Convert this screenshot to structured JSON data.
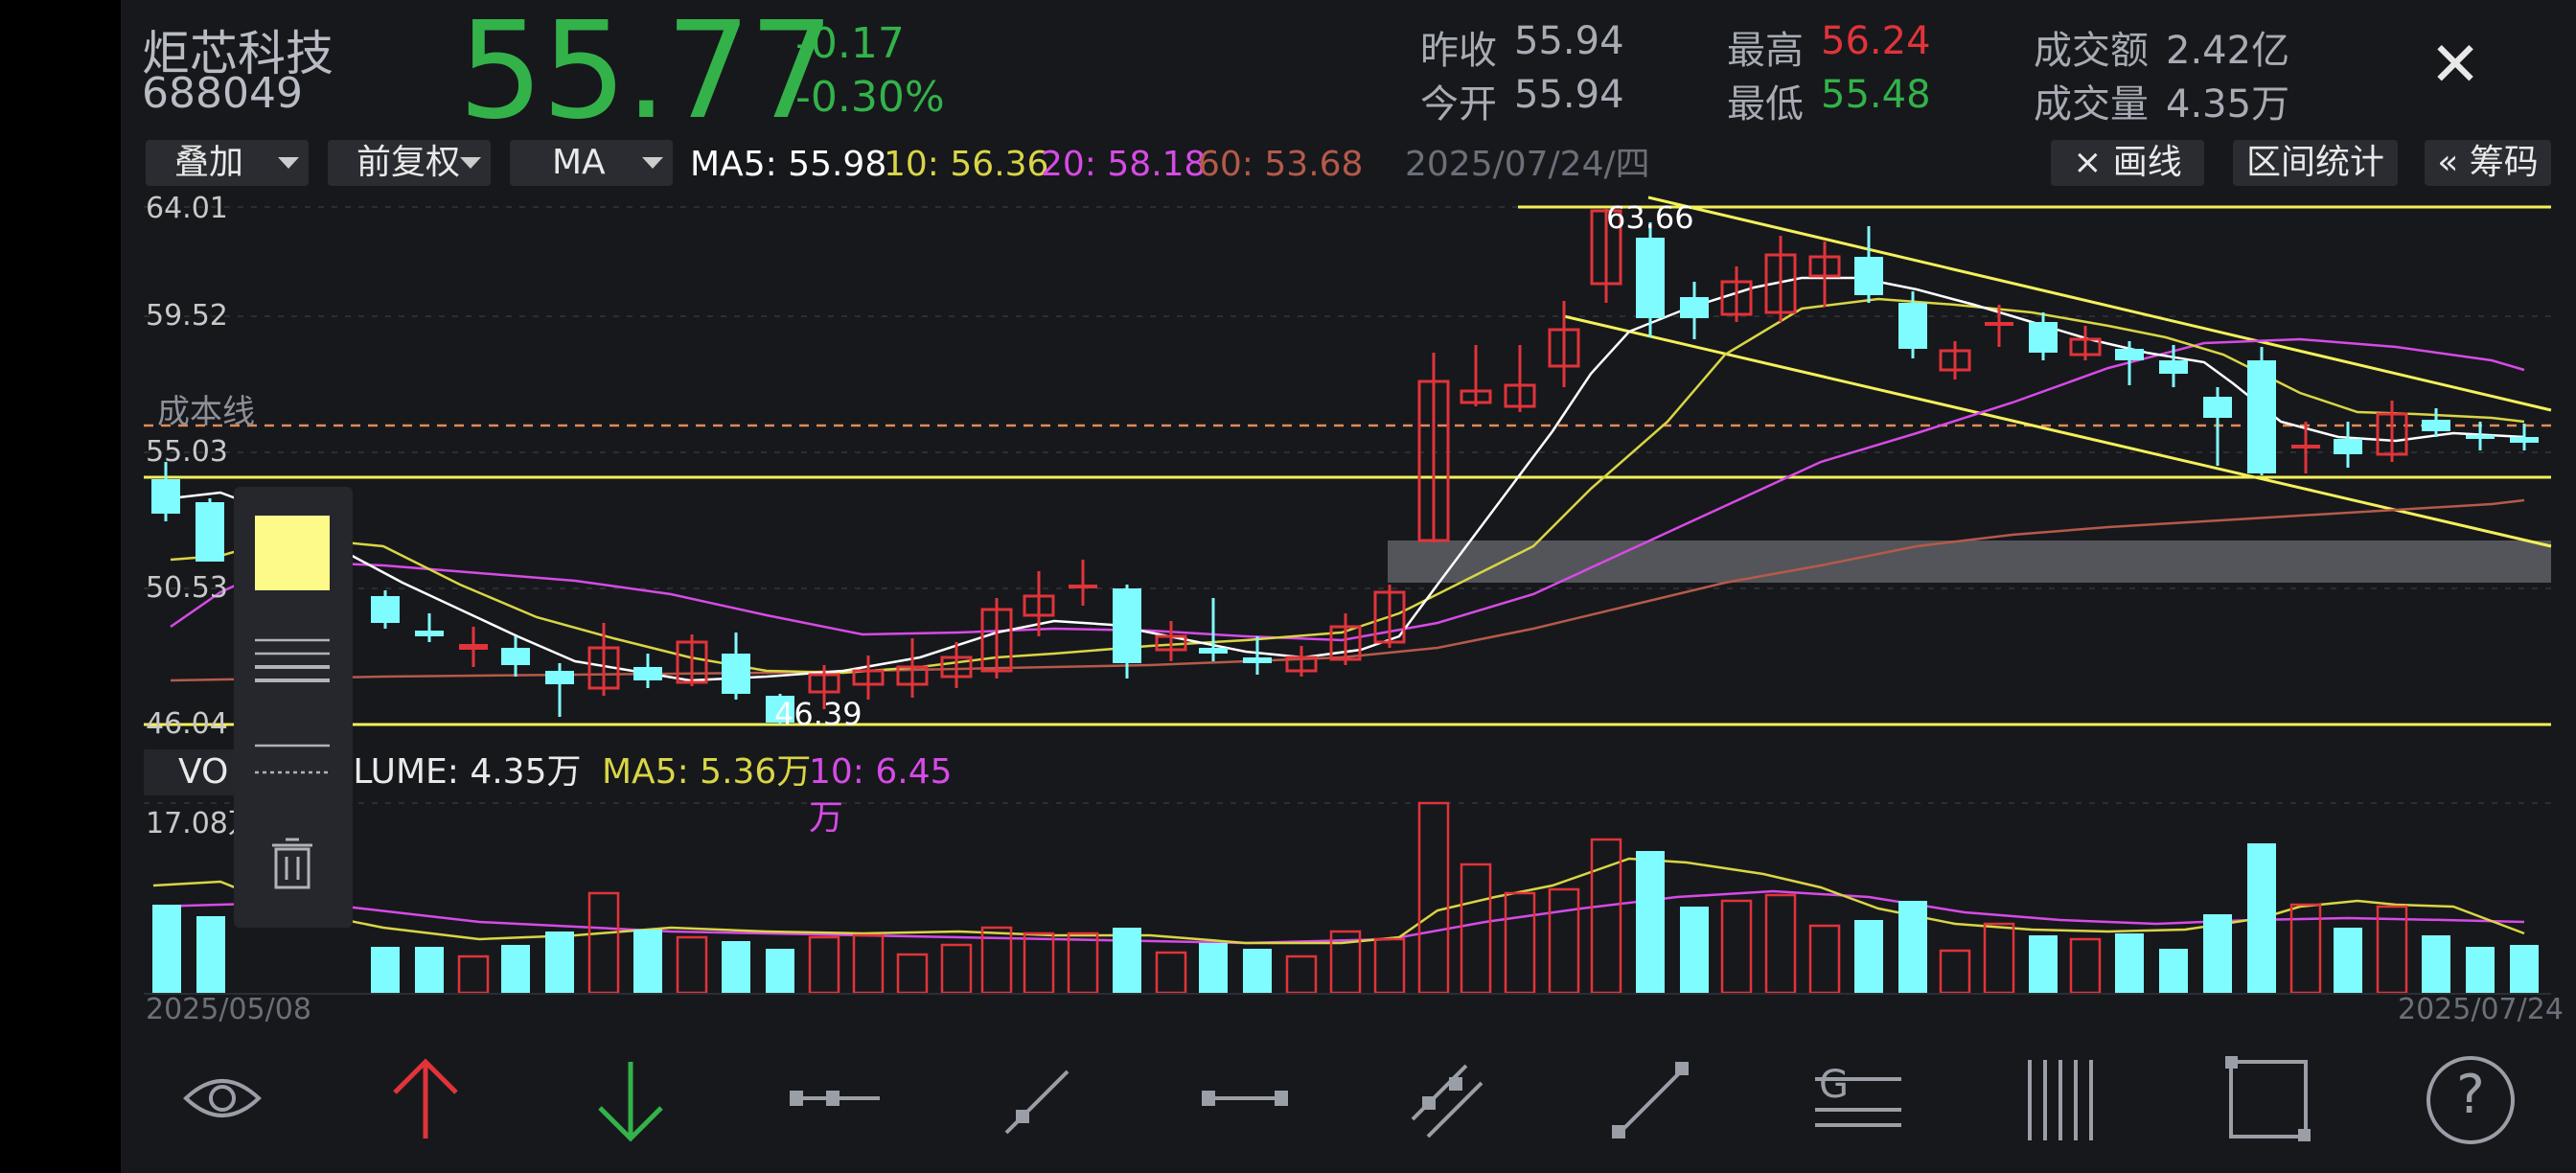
{
  "stock": {
    "name": "炬芯科技",
    "code": "688049",
    "price": "55.77",
    "change": "-0.17",
    "change_pct": "-0.30%"
  },
  "stats": {
    "prev_close_label": "昨收",
    "prev_close": "55.94",
    "open_label": "今开",
    "open": "55.94",
    "high_label": "最高",
    "high": "56.24",
    "low_label": "最低",
    "low": "55.48",
    "amount_label": "成交额",
    "amount": "2.42亿",
    "volume_label": "成交量",
    "volume": "4.35万"
  },
  "toolbar": {
    "overlay_label": "叠加",
    "adjust_label": "前复权",
    "indicator_label": "MA",
    "ma5": "MA5: 55.98",
    "ma10": "10: 56.36",
    "ma20": "20: 58.18",
    "ma60": "60: 53.68",
    "current_date": "2025/07/24/四",
    "draw_line_label": "× 画线",
    "range_stats_label": "区间统计",
    "chips_label": "« 筹码"
  },
  "price_axis": {
    "top": "64.01",
    "t2": "59.52",
    "t3": "55.03",
    "t4": "50.53",
    "bottom": "46.04"
  },
  "annotations": {
    "peak": "63.66",
    "trough": "46.39",
    "cost_line_label": "成本线"
  },
  "volume_panel": {
    "label_prefix": "VO",
    "label_suffix": "OLUME: 4.35万",
    "ma5": "MA5: 5.36万",
    "ma10": "10: 6.45万",
    "axis_max": "17.08万"
  },
  "dates": {
    "start": "2025/05/08",
    "end": "2025/07/24"
  },
  "colors": {
    "up": "#e0343a",
    "down": "#7ffcff",
    "ma5": "#ffffff",
    "ma10": "#d9d545",
    "ma20": "#d64be6",
    "ma60": "#b55a4a",
    "price_green": "#33b24a",
    "drawn_line": "#f3f05a"
  },
  "bottom_toolbar_icons": [
    "eye-icon",
    "arrow-up-icon",
    "arrow-down-icon",
    "segment-icon",
    "ray-icon",
    "horizontal-line-icon",
    "parallel-channel-icon",
    "extended-line-icon",
    "gann-icon",
    "vertical-lines-icon",
    "rectangle-icon",
    "help-icon"
  ]
}
